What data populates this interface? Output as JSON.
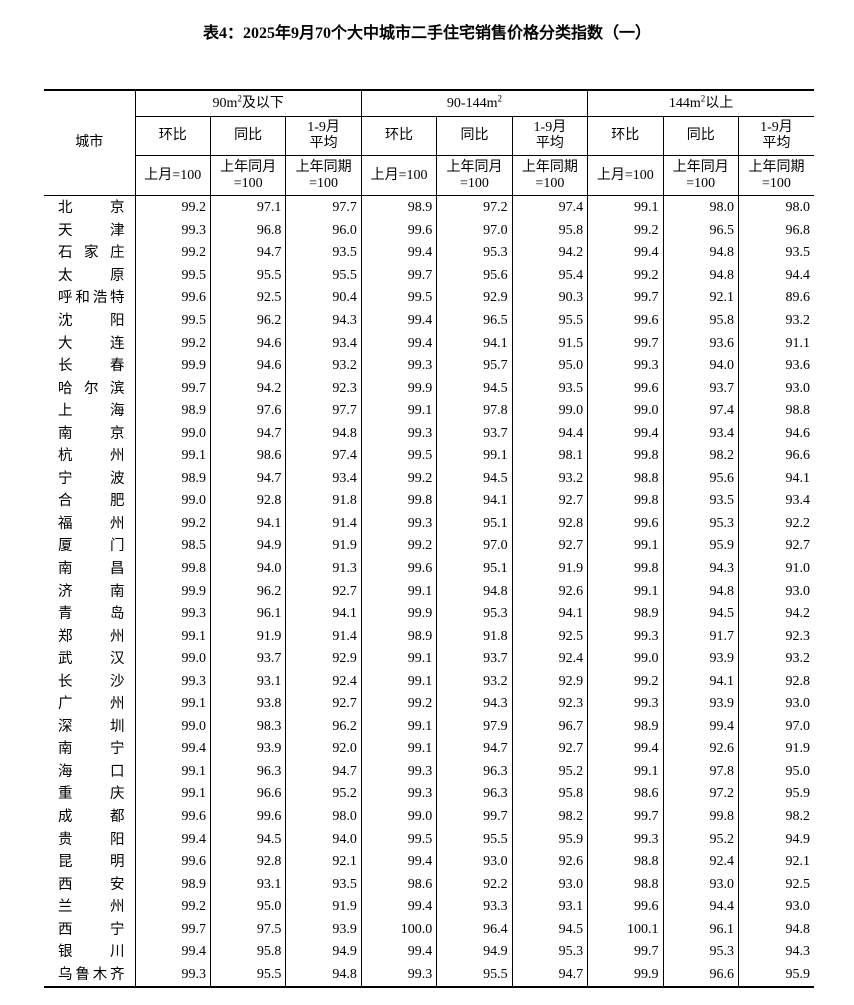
{
  "title": "表4：2025年9月70个大中城市二手住宅销售价格分类指数（一）",
  "header": {
    "city": "城市",
    "groups": [
      {
        "pre": "90m",
        "sup": "2",
        "post": "及以下"
      },
      {
        "pre": "90-144m",
        "sup": "2",
        "post": ""
      },
      {
        "pre": "144m",
        "sup": "2",
        "post": "以上"
      }
    ],
    "labels": {
      "mom": "环比",
      "yoy": "同比",
      "avg_l1": "1-9月",
      "avg_l2": "平均"
    },
    "bases": {
      "mom": "上月=100",
      "yoy_l1": "上年同月",
      "yoy_l2": "=100",
      "avg_l1": "上年同期",
      "avg_l2": "=100"
    }
  },
  "rows": [
    {
      "city": "北京",
      "v": [
        "99.2",
        "97.1",
        "97.7",
        "98.9",
        "97.2",
        "97.4",
        "99.1",
        "98.0",
        "98.0"
      ]
    },
    {
      "city": "天津",
      "v": [
        "99.3",
        "96.8",
        "96.0",
        "99.6",
        "97.0",
        "95.8",
        "99.2",
        "96.5",
        "96.8"
      ]
    },
    {
      "city": "石家庄",
      "v": [
        "99.2",
        "94.7",
        "93.5",
        "99.4",
        "95.3",
        "94.2",
        "99.4",
        "94.8",
        "93.5"
      ]
    },
    {
      "city": "太原",
      "v": [
        "99.5",
        "95.5",
        "95.5",
        "99.7",
        "95.6",
        "95.4",
        "99.2",
        "94.8",
        "94.4"
      ]
    },
    {
      "city": "呼和浩特",
      "v": [
        "99.6",
        "92.5",
        "90.4",
        "99.5",
        "92.9",
        "90.3",
        "99.7",
        "92.1",
        "89.6"
      ]
    },
    {
      "city": "沈阳",
      "v": [
        "99.5",
        "96.2",
        "94.3",
        "99.4",
        "96.5",
        "95.5",
        "99.6",
        "95.8",
        "93.2"
      ]
    },
    {
      "city": "大连",
      "v": [
        "99.2",
        "94.6",
        "93.4",
        "99.4",
        "94.1",
        "91.5",
        "99.7",
        "93.6",
        "91.1"
      ]
    },
    {
      "city": "长春",
      "v": [
        "99.9",
        "94.6",
        "93.2",
        "99.3",
        "95.7",
        "95.0",
        "99.3",
        "94.0",
        "93.6"
      ]
    },
    {
      "city": "哈尔滨",
      "v": [
        "99.7",
        "94.2",
        "92.3",
        "99.9",
        "94.5",
        "93.5",
        "99.6",
        "93.7",
        "93.0"
      ]
    },
    {
      "city": "上海",
      "v": [
        "98.9",
        "97.6",
        "97.7",
        "99.1",
        "97.8",
        "99.0",
        "99.0",
        "97.4",
        "98.8"
      ]
    },
    {
      "city": "南京",
      "v": [
        "99.0",
        "94.7",
        "94.8",
        "99.3",
        "93.7",
        "94.4",
        "99.4",
        "93.4",
        "94.6"
      ]
    },
    {
      "city": "杭州",
      "v": [
        "99.1",
        "98.6",
        "97.4",
        "99.5",
        "99.1",
        "98.1",
        "99.8",
        "98.2",
        "96.6"
      ]
    },
    {
      "city": "宁波",
      "v": [
        "98.9",
        "94.7",
        "93.4",
        "99.2",
        "94.5",
        "93.2",
        "98.8",
        "95.6",
        "94.1"
      ]
    },
    {
      "city": "合肥",
      "v": [
        "99.0",
        "92.8",
        "91.8",
        "99.8",
        "94.1",
        "92.7",
        "99.8",
        "93.5",
        "93.4"
      ]
    },
    {
      "city": "福州",
      "v": [
        "99.2",
        "94.1",
        "91.4",
        "99.3",
        "95.1",
        "92.8",
        "99.6",
        "95.3",
        "92.2"
      ]
    },
    {
      "city": "厦门",
      "v": [
        "98.5",
        "94.9",
        "91.9",
        "99.2",
        "97.0",
        "92.7",
        "99.1",
        "95.9",
        "92.7"
      ]
    },
    {
      "city": "南昌",
      "v": [
        "99.8",
        "94.0",
        "91.3",
        "99.6",
        "95.1",
        "91.9",
        "99.8",
        "94.3",
        "91.0"
      ]
    },
    {
      "city": "济南",
      "v": [
        "99.9",
        "96.2",
        "92.7",
        "99.1",
        "94.8",
        "92.6",
        "99.1",
        "94.8",
        "93.0"
      ]
    },
    {
      "city": "青岛",
      "v": [
        "99.3",
        "96.1",
        "94.1",
        "99.9",
        "95.3",
        "94.1",
        "98.9",
        "94.5",
        "94.2"
      ]
    },
    {
      "city": "郑州",
      "v": [
        "99.1",
        "91.9",
        "91.4",
        "98.9",
        "91.8",
        "92.5",
        "99.3",
        "91.7",
        "92.3"
      ]
    },
    {
      "city": "武汉",
      "v": [
        "99.0",
        "93.7",
        "92.9",
        "99.1",
        "93.7",
        "92.4",
        "99.0",
        "93.9",
        "93.2"
      ]
    },
    {
      "city": "长沙",
      "v": [
        "99.3",
        "93.1",
        "92.4",
        "99.1",
        "93.2",
        "92.9",
        "99.2",
        "94.1",
        "92.8"
      ]
    },
    {
      "city": "广州",
      "v": [
        "99.1",
        "93.8",
        "92.7",
        "99.2",
        "94.3",
        "92.3",
        "99.3",
        "93.9",
        "93.0"
      ]
    },
    {
      "city": "深圳",
      "v": [
        "99.0",
        "98.3",
        "96.2",
        "99.1",
        "97.9",
        "96.7",
        "98.9",
        "99.4",
        "97.0"
      ]
    },
    {
      "city": "南宁",
      "v": [
        "99.4",
        "93.9",
        "92.0",
        "99.1",
        "94.7",
        "92.7",
        "99.4",
        "92.6",
        "91.9"
      ]
    },
    {
      "city": "海口",
      "v": [
        "99.1",
        "96.3",
        "94.7",
        "99.3",
        "96.3",
        "95.2",
        "99.1",
        "97.8",
        "95.0"
      ]
    },
    {
      "city": "重庆",
      "v": [
        "99.1",
        "96.6",
        "95.2",
        "99.3",
        "96.3",
        "95.8",
        "98.6",
        "97.2",
        "95.9"
      ]
    },
    {
      "city": "成都",
      "v": [
        "99.6",
        "99.6",
        "98.0",
        "99.0",
        "99.7",
        "98.2",
        "99.7",
        "99.8",
        "98.2"
      ]
    },
    {
      "city": "贵阳",
      "v": [
        "99.4",
        "94.5",
        "94.0",
        "99.5",
        "95.5",
        "95.9",
        "99.3",
        "95.2",
        "94.9"
      ]
    },
    {
      "city": "昆明",
      "v": [
        "99.6",
        "92.8",
        "92.1",
        "99.4",
        "93.0",
        "92.6",
        "98.8",
        "92.4",
        "92.1"
      ]
    },
    {
      "city": "西安",
      "v": [
        "98.9",
        "93.1",
        "93.5",
        "98.6",
        "92.2",
        "93.0",
        "98.8",
        "93.0",
        "92.5"
      ]
    },
    {
      "city": "兰州",
      "v": [
        "99.2",
        "95.0",
        "91.9",
        "99.4",
        "93.3",
        "93.1",
        "99.6",
        "94.4",
        "93.0"
      ]
    },
    {
      "city": "西宁",
      "v": [
        "99.7",
        "97.5",
        "93.9",
        "100.0",
        "96.4",
        "94.5",
        "100.1",
        "96.1",
        "94.8"
      ]
    },
    {
      "city": "银川",
      "v": [
        "99.4",
        "95.8",
        "94.9",
        "99.4",
        "94.9",
        "95.3",
        "99.7",
        "95.3",
        "94.3"
      ]
    },
    {
      "city": "乌鲁木齐",
      "v": [
        "99.3",
        "95.5",
        "94.8",
        "99.3",
        "95.5",
        "94.7",
        "99.9",
        "96.6",
        "95.9"
      ]
    }
  ]
}
